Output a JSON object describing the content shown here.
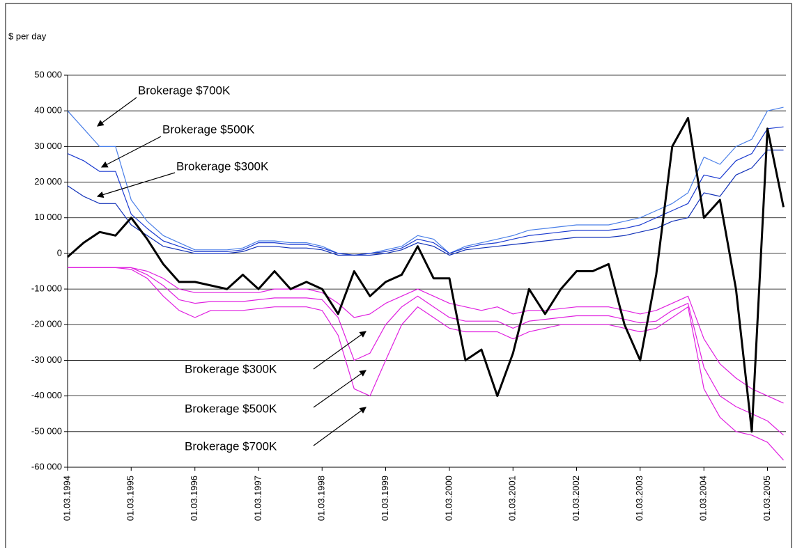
{
  "chart_data": {
    "type": "line",
    "y_label": "$ per day",
    "xlim": [
      "01.03.1994",
      "15.06.2005"
    ],
    "xticks": [
      "01.03.1994",
      "01.03.1995",
      "01.03.1996",
      "01.03.1997",
      "01.03.1998",
      "01.03.1999",
      "01.03.2000",
      "01.03.2001",
      "01.03.2002",
      "01.03.2003",
      "01.03.2004",
      "01.03.2005"
    ],
    "ylim": [
      -60000,
      50000
    ],
    "yticks": [
      {
        "value": -60000,
        "label": "-60 000"
      },
      {
        "value": -50000,
        "label": "-50 000"
      },
      {
        "value": -40000,
        "label": "-40 000"
      },
      {
        "value": -30000,
        "label": "-30 000"
      },
      {
        "value": -20000,
        "label": "-20 000"
      },
      {
        "value": -10000,
        "label": "-10 000"
      },
      0,
      {
        "value": 10000,
        "label": "10 000"
      },
      {
        "value": 20000,
        "label": "20 000"
      },
      {
        "value": 30000,
        "label": "30 000"
      },
      {
        "value": 40000,
        "label": "40 000"
      },
      {
        "value": 50000,
        "label": "50 000"
      }
    ],
    "grid": true,
    "x": [
      "01.03.1994",
      "01.06.1994",
      "01.09.1994",
      "01.12.1994",
      "01.03.1995",
      "01.06.1995",
      "01.09.1995",
      "01.12.1995",
      "01.03.1996",
      "01.06.1996",
      "01.09.1996",
      "01.12.1996",
      "01.03.1997",
      "01.06.1997",
      "01.09.1997",
      "01.12.1997",
      "01.03.1998",
      "01.06.1998",
      "01.09.1998",
      "01.12.1998",
      "01.03.1999",
      "01.06.1999",
      "01.09.1999",
      "01.12.1999",
      "01.03.2000",
      "01.06.2000",
      "01.09.2000",
      "01.12.2000",
      "01.03.2001",
      "01.06.2001",
      "01.09.2001",
      "01.12.2001",
      "01.03.2002",
      "01.06.2002",
      "01.09.2002",
      "01.12.2002",
      "01.03.2003",
      "01.06.2003",
      "01.09.2003",
      "01.12.2003",
      "01.03.2004",
      "01.06.2004",
      "01.09.2004",
      "01.12.2004",
      "01.03.2005",
      "01.06.2005"
    ],
    "series": [
      {
        "color": "#4a7fe8",
        "width": 1.2,
        "values": [
          40000,
          35000,
          30000,
          30000,
          15000,
          9000,
          5000,
          3000,
          1000,
          1000,
          1000,
          1500,
          3500,
          3500,
          3000,
          3000,
          2000,
          0,
          -500,
          0,
          1000,
          2000,
          5000,
          4000,
          0,
          2000,
          3000,
          4000,
          5000,
          6500,
          7000,
          7500,
          8000,
          8000,
          8000,
          9000,
          10000,
          12000,
          14000,
          17000,
          27000,
          25000,
          30000,
          32000,
          40000,
          41000
        ]
      },
      {
        "color": "#1a3ad0",
        "width": 1.2,
        "values": [
          28000,
          26000,
          23000,
          23000,
          11000,
          7000,
          3500,
          2000,
          500,
          500,
          500,
          1000,
          3000,
          3000,
          2500,
          2500,
          1500,
          0,
          -500,
          0,
          500,
          1500,
          4000,
          3000,
          0,
          1500,
          2500,
          3000,
          4000,
          5000,
          5500,
          6000,
          6500,
          6500,
          6500,
          7000,
          8000,
          10000,
          12000,
          14000,
          22000,
          21000,
          26000,
          28000,
          35000,
          35500
        ]
      },
      {
        "color": "#1030b8",
        "width": 1.2,
        "values": [
          19000,
          16000,
          14000,
          14000,
          8000,
          5000,
          2000,
          1000,
          0,
          0,
          0,
          500,
          2000,
          2000,
          1500,
          1500,
          1000,
          -500,
          -500,
          -500,
          0,
          1000,
          3000,
          2000,
          -500,
          1000,
          1500,
          2000,
          2500,
          3000,
          3500,
          4000,
          4500,
          4500,
          4500,
          5000,
          6000,
          7000,
          9000,
          10000,
          17000,
          16000,
          22000,
          24000,
          29000,
          29000
        ]
      },
      {
        "color": "#e020e0",
        "width": 1.2,
        "values": [
          -4000,
          -4000,
          -4000,
          -4000,
          -4000,
          -5000,
          -7000,
          -10000,
          -11000,
          -11000,
          -11000,
          -11000,
          -11000,
          -10000,
          -10000,
          -10000,
          -11000,
          -14000,
          -18000,
          -17000,
          -14000,
          -12000,
          -10000,
          -12000,
          -14000,
          -15000,
          -16000,
          -15000,
          -17000,
          -16000,
          -16000,
          -15500,
          -15000,
          -15000,
          -15000,
          -16000,
          -17000,
          -16000,
          -14000,
          -12000,
          -24000,
          -31000,
          -35000,
          -38000,
          -40000,
          -42000
        ]
      },
      {
        "color": "#e020e0",
        "width": 1.2,
        "values": [
          -4000,
          -4000,
          -4000,
          -4000,
          -4000,
          -6000,
          -9000,
          -13000,
          -14000,
          -13500,
          -13500,
          -13500,
          -13000,
          -12500,
          -12500,
          -12500,
          -13000,
          -18000,
          -30000,
          -28000,
          -20000,
          -15000,
          -12000,
          -15000,
          -18000,
          -19000,
          -19000,
          -19000,
          -21000,
          -19000,
          -18500,
          -18000,
          -17500,
          -17500,
          -17500,
          -18500,
          -19500,
          -19000,
          -16000,
          -14000,
          -32000,
          -40000,
          -43000,
          -45000,
          -47000,
          -51000
        ]
      },
      {
        "color": "#e020e0",
        "width": 1.2,
        "values": [
          -4000,
          -4000,
          -4000,
          -4000,
          -4500,
          -7000,
          -12000,
          -16000,
          -18000,
          -16000,
          -16000,
          -16000,
          -15500,
          -15000,
          -15000,
          -15000,
          -16000,
          -23000,
          -38000,
          -40000,
          -30000,
          -20000,
          -15000,
          -18000,
          -21000,
          -22000,
          -22000,
          -22000,
          -24000,
          -22000,
          -21000,
          -20000,
          -20000,
          -20000,
          -20000,
          -21000,
          -22000,
          -21000,
          -18000,
          -15000,
          -38000,
          -46000,
          -50000,
          -51000,
          -53000,
          -58000
        ]
      },
      {
        "color": "#000000",
        "width": 3,
        "values": [
          -1000,
          3000,
          6000,
          5000,
          10000,
          4000,
          -3000,
          -8000,
          -8000,
          -9000,
          -10000,
          -6000,
          -10000,
          -5000,
          -10000,
          -8000,
          -10000,
          -17000,
          -5000,
          -12000,
          -8000,
          -6000,
          2000,
          -7000,
          -7000,
          -30000,
          -27000,
          -40000,
          -28000,
          -10000,
          -17000,
          -10000,
          -5000,
          -5000,
          -3000,
          -20000,
          -30000,
          -6000,
          30000,
          38000,
          10000,
          15000,
          -10000,
          -50000,
          35000,
          13000
        ]
      }
    ],
    "annotations": [
      "Brokerage $700K",
      "Brokerage $500K",
      "Brokerage $300K",
      "Brokerage $300K",
      "Brokerage $500K",
      "Brokerage $700K"
    ]
  }
}
